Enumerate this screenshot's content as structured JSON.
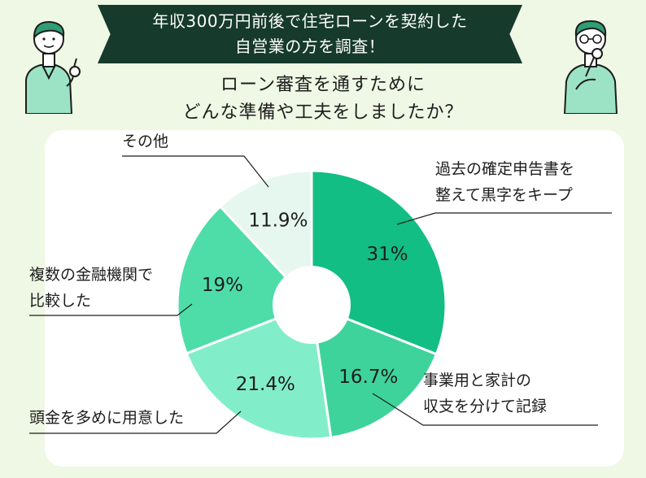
{
  "header": {
    "banner_line1": "年収300万円前後で住宅ローンを契約した",
    "banner_line2": "自営業の方を調査！",
    "question_line1": "ローン審査を通すために",
    "question_line2": "どんな準備や工夫をしましたか？"
  },
  "colors": {
    "banner": "#163a2c",
    "background": "#eef8e4",
    "card": "#ffffff"
  },
  "icons": {
    "left": "pointing-person-illustration",
    "right": "thinking-person-illustration"
  },
  "chart_data": {
    "type": "pie",
    "donut": true,
    "title": "",
    "slices": [
      {
        "label_lines": [
          "過去の確定申告書を",
          "整えて黒字をキープ"
        ],
        "value": 31,
        "value_label": "31%",
        "color": "#12be83"
      },
      {
        "label_lines": [
          "事業用と家計の",
          "収支を分けて記録"
        ],
        "value": 16.7,
        "value_label": "16.7%",
        "color": "#3fd39c"
      },
      {
        "label_lines": [
          "頭金を多めに用意した"
        ],
        "value": 21.4,
        "value_label": "21.4%",
        "color": "#82eec9"
      },
      {
        "label_lines": [
          "複数の金融機関で",
          "比較した"
        ],
        "value": 19,
        "value_label": "19%",
        "color": "#4edda9"
      },
      {
        "label_lines": [
          "その他"
        ],
        "value": 11.9,
        "value_label": "11.9%",
        "color": "#e6f7f0"
      }
    ]
  }
}
